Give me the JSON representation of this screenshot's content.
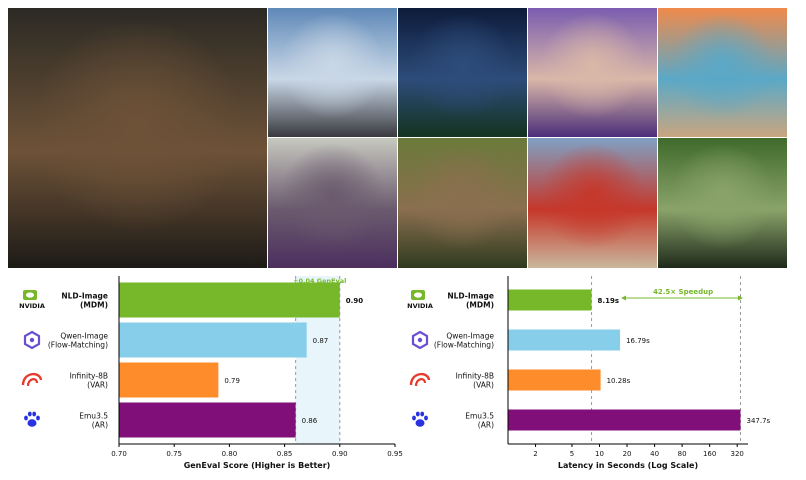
{
  "gallery": {
    "tiles": [
      {
        "id": "steampunk-warrior",
        "colors": [
          "#2b2a24",
          "#6e5238",
          "#1d1b17"
        ]
      },
      {
        "id": "japanese-temple",
        "colors": [
          "#5f89b8",
          "#c9d7e6",
          "#3a3a40"
        ]
      },
      {
        "id": "starry-palms",
        "colors": [
          "#0d1b3a",
          "#2d4c7a",
          "#14331f"
        ]
      },
      {
        "id": "purple-girl",
        "colors": [
          "#7a5db0",
          "#d9b7a8",
          "#4b2e7a"
        ]
      },
      {
        "id": "sunset-beach",
        "colors": [
          "#f08a4b",
          "#5aa8c7",
          "#c9a680"
        ]
      },
      {
        "id": "woman-purple-dress",
        "colors": [
          "#c7c9c0",
          "#6b5a6e",
          "#4b2f5e"
        ]
      },
      {
        "id": "hedgehog",
        "colors": [
          "#6b7a3a",
          "#8a6f4f",
          "#2f3a1f"
        ]
      },
      {
        "id": "tomato-beach",
        "colors": [
          "#7fa1c4",
          "#c6372a",
          "#c9b79c"
        ]
      },
      {
        "id": "car-forest",
        "colors": [
          "#3f6a2b",
          "#8aa36a",
          "#1e2a1a"
        ]
      }
    ]
  },
  "models": [
    {
      "name": "NLD-Image",
      "sub": "(MDM)",
      "bold": true,
      "color": "#76b82a",
      "icon": "nvidia-logo-icon",
      "logo_text": "NVIDIA"
    },
    {
      "name": "Qwen-Image",
      "sub": "(Flow-Matching)",
      "bold": false,
      "color": "#87ceeb",
      "icon": "qwen-logo-icon"
    },
    {
      "name": "Infinity-8B",
      "sub": "(VAR)",
      "bold": false,
      "color": "#ff8c2a",
      "icon": "bytedance-logo-icon"
    },
    {
      "name": "Emu3.5",
      "sub": "(AR)",
      "bold": false,
      "color": "#800f7a",
      "icon": "baidu-paw-icon"
    }
  ],
  "chart_data": [
    {
      "type": "bar",
      "orientation": "horizontal",
      "categories": [
        "NLD-Image (MDM)",
        "Qwen-Image (Flow-Matching)",
        "Infinity-8B (VAR)",
        "Emu3.5 (AR)"
      ],
      "values": [
        0.9,
        0.87,
        0.79,
        0.86
      ],
      "value_labels": [
        "0.90",
        "0.87",
        "0.79",
        "0.86"
      ],
      "xlabel": "GenEval Score (Higher is Better)",
      "xlim": [
        0.7,
        0.95
      ],
      "xticks": [
        0.7,
        0.75,
        0.8,
        0.85,
        0.9,
        0.95
      ],
      "xtick_labels": [
        "0.70",
        "0.75",
        "0.80",
        "0.85",
        "0.90",
        "0.95"
      ],
      "annotation": {
        "text": "+0.04 GenEval",
        "from": 0.86,
        "to": 0.9,
        "color": "#76b82a"
      }
    },
    {
      "type": "bar",
      "orientation": "horizontal",
      "scale": "log2",
      "categories": [
        "NLD-Image (MDM)",
        "Qwen-Image (Flow-Matching)",
        "Infinity-8B (VAR)",
        "Emu3.5 (AR)"
      ],
      "values": [
        8.19,
        16.79,
        10.28,
        347.7
      ],
      "value_labels": [
        "8.19s",
        "16.79s",
        "10.28s",
        "347.7s"
      ],
      "xlabel": "Latency in Seconds (Log Scale)",
      "xlim": [
        1,
        420
      ],
      "xticks": [
        2,
        5,
        10,
        20,
        40,
        80,
        160,
        320
      ],
      "xtick_labels": [
        "2",
        "5",
        "10",
        "20",
        "40",
        "80",
        "160",
        "320"
      ],
      "annotation": {
        "text": "42.5× Speedup",
        "from": 8.19,
        "to": 347.7,
        "color": "#76b82a"
      }
    }
  ]
}
